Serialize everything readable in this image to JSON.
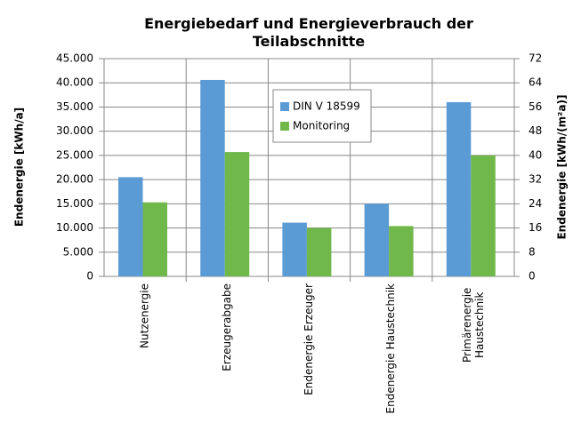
{
  "chart_data": {
    "type": "bar",
    "title": "Energiebedarf und Energieverbrauch der Teilabschnitte",
    "ylabel": "Endenergie [kWh/a]",
    "y2label": "Endenergie [kWh/(m²a)]",
    "categories": [
      "Nutzenergie",
      "Erzeugerabgabe",
      "Endenergie Erzeuger",
      "Endenergie Haustechnik",
      "Primärenergie Haustechnik"
    ],
    "series": [
      {
        "name": "DIN V 18599",
        "color": "#5b9bd5",
        "values": [
          20500,
          40600,
          11100,
          15000,
          36000
        ]
      },
      {
        "name": "Monitoring",
        "color": "#70b84a",
        "values": [
          15300,
          25700,
          10000,
          10400,
          25000
        ]
      }
    ],
    "ylim": [
      0,
      45000
    ],
    "yticks": [
      0,
      {
        "value": 5000,
        "label": "5.000"
      },
      {
        "value": 10000,
        "label": "10.000"
      },
      {
        "value": 15000,
        "label": "15.000"
      },
      {
        "value": 20000,
        "label": "20.000"
      },
      {
        "value": 25000,
        "label": "25.000"
      },
      {
        "value": 30000,
        "label": "30.000"
      },
      {
        "value": 35000,
        "label": "35.000"
      },
      {
        "value": 40000,
        "label": "40.000"
      },
      {
        "value": 45000,
        "label": "45.000"
      }
    ],
    "y2lim": [
      0,
      72
    ],
    "y2ticks": [
      0,
      8,
      16,
      24,
      32,
      40,
      48,
      56,
      64,
      72
    ],
    "grid": true,
    "legend": "top"
  }
}
